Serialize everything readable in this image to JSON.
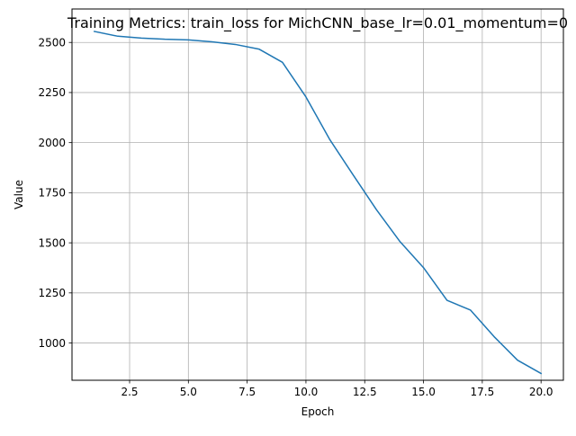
{
  "chart_data": {
    "type": "line",
    "title": "Training Metrics: train_loss for MichCNN_base_lr=0.01_momentum=0",
    "xlabel": "Epoch",
    "ylabel": "Value",
    "xlim": [
      0.05,
      20.95
    ],
    "ylim": [
      814,
      2667
    ],
    "x_ticks": [
      2.5,
      5.0,
      7.5,
      10.0,
      12.5,
      15.0,
      17.5,
      20.0
    ],
    "x_tick_labels": [
      "2.5",
      "5.0",
      "7.5",
      "10.0",
      "12.5",
      "15.0",
      "17.5",
      "20.0"
    ],
    "y_ticks": [
      1000,
      1250,
      1500,
      1750,
      2000,
      2250,
      2500
    ],
    "y_tick_labels": [
      "1000",
      "1250",
      "1500",
      "1750",
      "2000",
      "2250",
      "2500"
    ],
    "grid": true,
    "series": [
      {
        "color": "#1f77b4",
        "x": [
          1,
          2,
          3,
          4,
          5,
          6,
          7,
          8,
          9,
          10,
          11,
          12,
          13,
          14,
          15,
          16,
          17,
          18,
          19,
          20
        ],
        "values": [
          2555,
          2531,
          2522,
          2516,
          2513,
          2503,
          2490,
          2467,
          2401,
          2228,
          2018,
          1840,
          1665,
          1506,
          1376,
          1213,
          1164,
          1032,
          914,
          848
        ]
      }
    ]
  }
}
